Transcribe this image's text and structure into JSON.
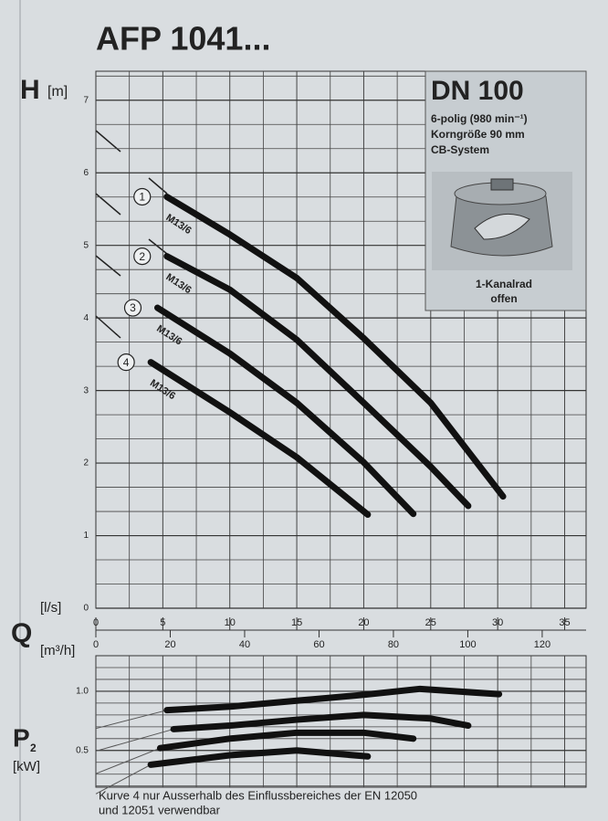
{
  "chart_data": [
    {
      "type": "line",
      "title": "AFP 1041...",
      "y_label": "H",
      "y_unit": "[m]",
      "x_label": "Q",
      "x_unit": "[l/s]",
      "x2_unit": "[m³/h]",
      "xlim": [
        0,
        36.6
      ],
      "xticks": [
        0,
        5,
        10,
        15,
        20,
        25,
        30,
        35
      ],
      "x2lim": [
        0,
        131.8
      ],
      "x2ticks": [
        0,
        20,
        40,
        60,
        80,
        100,
        120
      ],
      "ylim": [
        0,
        7.4
      ],
      "yticks": [
        0,
        1,
        2,
        3,
        4,
        5,
        6,
        7
      ],
      "grid": true,
      "series": [
        {
          "name": "1",
          "label": "M13/6",
          "color": "#111111",
          "x": [
            5.3,
            10,
            15,
            20,
            25,
            30.4
          ],
          "values": [
            5.67,
            5.15,
            4.55,
            3.72,
            2.83,
            1.54
          ]
        },
        {
          "name": "2",
          "label": "M13/6",
          "color": "#111111",
          "x": [
            5.3,
            10,
            15,
            20,
            25,
            27.8
          ],
          "values": [
            4.85,
            4.39,
            3.7,
            2.83,
            1.95,
            1.41
          ]
        },
        {
          "name": "3",
          "label": "M13/6",
          "color": "#111111",
          "x": [
            4.6,
            10,
            15,
            20,
            23.7
          ],
          "values": [
            4.14,
            3.51,
            2.83,
            2.01,
            1.3
          ]
        },
        {
          "name": "4",
          "label": "M13/6",
          "color": "#111111",
          "x": [
            4.1,
            10,
            15,
            20.3
          ],
          "values": [
            3.39,
            2.7,
            2.08,
            1.29
          ]
        }
      ]
    },
    {
      "type": "line",
      "y_label": "P",
      "y_label_sub": "2",
      "y_unit": "[kW]",
      "xlim": [
        0,
        36.6
      ],
      "ylim": [
        0.19,
        1.3
      ],
      "yticks": [
        {
          "value": 1,
          "label": "1.0"
        },
        0.5
      ],
      "grid": true,
      "series": [
        {
          "color": "#111111",
          "x": [
            5.3,
            10,
            15,
            20,
            24.2,
            30.1
          ],
          "values": [
            0.84,
            0.87,
            0.92,
            0.97,
            1.02,
            0.975
          ]
        },
        {
          "color": "#111111",
          "x": [
            5.8,
            10,
            15,
            20,
            25,
            27.8
          ],
          "values": [
            0.68,
            0.71,
            0.76,
            0.8,
            0.77,
            0.71
          ]
        },
        {
          "color": "#111111",
          "x": [
            4.8,
            10,
            15,
            20,
            23.7
          ],
          "values": [
            0.52,
            0.6,
            0.65,
            0.65,
            0.6
          ]
        },
        {
          "color": "#111111",
          "x": [
            4.1,
            10,
            15,
            20.3
          ],
          "values": [
            0.38,
            0.46,
            0.5,
            0.45
          ]
        }
      ]
    }
  ],
  "info": {
    "title": "DN 100",
    "lines": [
      "6-polig (980 min⁻¹)",
      "Korngröße 90 mm",
      "CB-System"
    ],
    "caption": [
      "1-Kanalrad",
      "offen"
    ]
  },
  "footnote": [
    "Kurve 4 nur Ausserhalb des Einflussbereiches der EN 12050",
    "und 12051 verwendbar"
  ]
}
